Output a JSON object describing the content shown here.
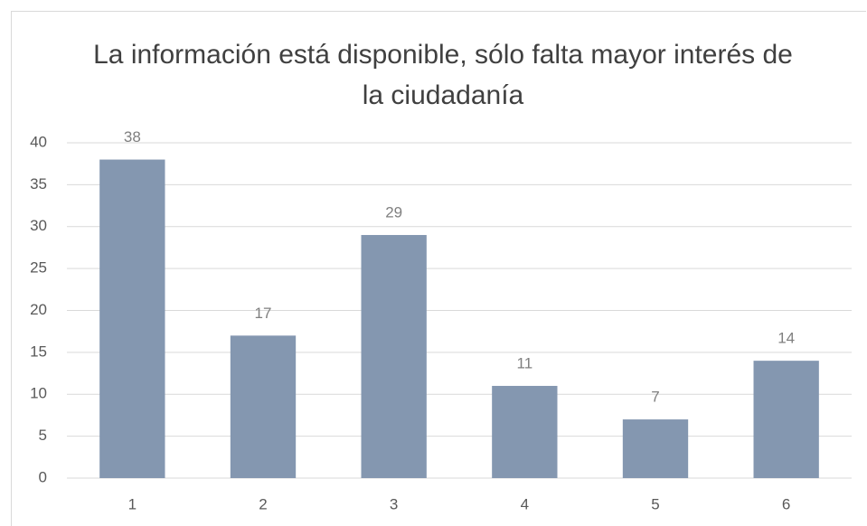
{
  "chart_data": {
    "type": "bar",
    "title": "La información está disponible, sólo falta mayor interés de la ciudadanía",
    "categories": [
      "1",
      "2",
      "3",
      "4",
      "5",
      "6"
    ],
    "values": [
      38,
      17,
      29,
      11,
      7,
      14
    ],
    "color": "#8497b0",
    "ylim": [
      0,
      40
    ],
    "yticks": [
      0,
      5,
      10,
      15,
      20,
      25,
      30,
      35,
      40
    ],
    "grid": true
  }
}
